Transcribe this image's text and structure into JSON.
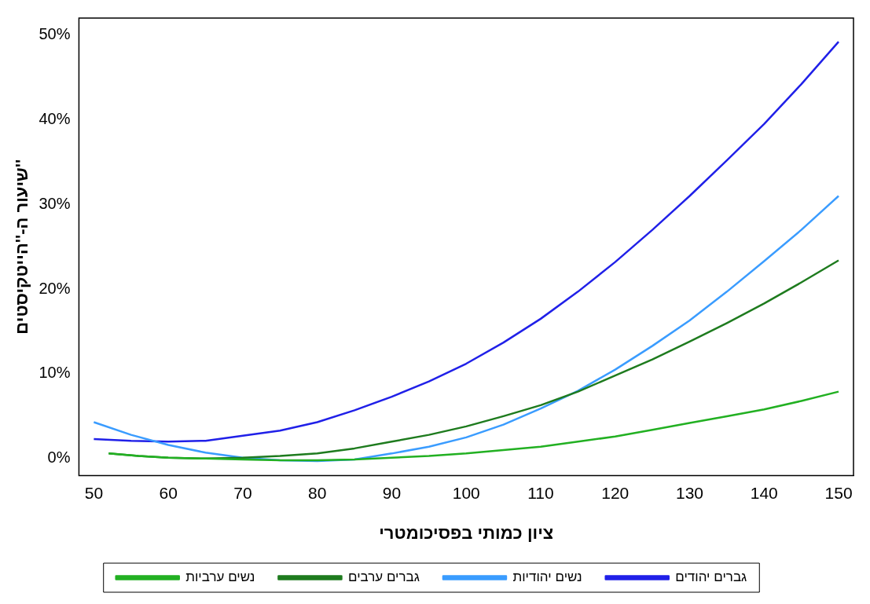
{
  "chart_data": {
    "type": "line",
    "xlabel": "ציון כמותי בפסיכומטרי",
    "ylabel": "שיעור ה-''הייטקיסטים''",
    "xlim": [
      48,
      152
    ],
    "xticks": [
      50,
      60,
      70,
      80,
      90,
      100,
      110,
      120,
      130,
      140,
      150
    ],
    "ylim": [
      -2,
      52
    ],
    "yticks": [
      {
        "value": 0,
        "label": "0%"
      },
      {
        "value": 10,
        "label": "10%"
      },
      {
        "value": 20,
        "label": "20%"
      },
      {
        "value": 30,
        "label": "30%"
      },
      {
        "value": 40,
        "label": "40%"
      },
      {
        "value": 50,
        "label": "50%"
      }
    ],
    "grid": false,
    "legend": "bottom",
    "marker": "none",
    "line_style": "solid",
    "series": [
      {
        "name": "גברים יהודים",
        "color": "#2020e8",
        "x": [
          50,
          55,
          60,
          65,
          70,
          75,
          80,
          85,
          90,
          95,
          100,
          105,
          110,
          115,
          120,
          125,
          130,
          135,
          140,
          145,
          150
        ],
        "values": [
          2.3,
          2.1,
          2.0,
          2.1,
          2.7,
          3.3,
          4.3,
          5.7,
          7.3,
          9.1,
          11.2,
          13.7,
          16.5,
          19.7,
          23.2,
          27.0,
          31.0,
          35.2,
          39.5,
          44.2,
          49.2
        ]
      },
      {
        "name": "נשים יהודיות",
        "color": "#3a9cff",
        "x": [
          50,
          55,
          60,
          65,
          70,
          75,
          80,
          85,
          90,
          95,
          100,
          105,
          110,
          115,
          120,
          125,
          130,
          135,
          140,
          145,
          150
        ],
        "values": [
          4.3,
          2.8,
          1.6,
          0.7,
          0.1,
          -0.2,
          -0.3,
          -0.1,
          0.6,
          1.4,
          2.5,
          4.0,
          5.9,
          8.0,
          10.5,
          13.3,
          16.3,
          19.7,
          23.3,
          27.0,
          31.0
        ]
      },
      {
        "name": "גברים ערבים",
        "color": "#1e7b1e",
        "x": [
          52,
          56,
          60,
          65,
          70,
          75,
          80,
          85,
          90,
          95,
          100,
          105,
          110,
          115,
          120,
          125,
          130,
          135,
          140,
          145,
          150
        ],
        "values": [
          0.6,
          0.3,
          0.1,
          0.0,
          0.1,
          0.3,
          0.6,
          1.2,
          2.0,
          2.8,
          3.8,
          5.0,
          6.3,
          7.9,
          9.8,
          11.7,
          13.8,
          16.0,
          18.3,
          20.8,
          23.4
        ]
      },
      {
        "name": "נשים ערביות",
        "color": "#22b022",
        "x": [
          52,
          56,
          60,
          65,
          70,
          75,
          80,
          85,
          90,
          95,
          100,
          105,
          110,
          115,
          120,
          125,
          130,
          135,
          140,
          145,
          150
        ],
        "values": [
          0.6,
          0.3,
          0.1,
          0.0,
          -0.1,
          -0.2,
          -0.2,
          -0.1,
          0.1,
          0.3,
          0.6,
          1.0,
          1.4,
          2.0,
          2.6,
          3.4,
          4.2,
          5.0,
          5.8,
          6.8,
          7.9
        ]
      }
    ]
  }
}
